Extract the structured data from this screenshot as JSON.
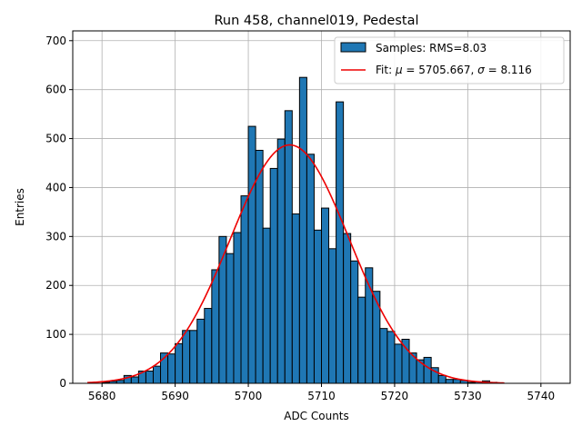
{
  "chart_data": {
    "type": "histogram",
    "title": "Run 458, channel019, Pedestal",
    "xlabel": "ADC Counts",
    "ylabel": "Entries",
    "xlim": [
      5676,
      5744
    ],
    "ylim": [
      0,
      720
    ],
    "xticks": [
      5680,
      5690,
      5700,
      5710,
      5720,
      5730,
      5740
    ],
    "yticks": [
      0,
      100,
      200,
      300,
      400,
      500,
      600,
      700
    ],
    "grid": true,
    "bin_width": 1,
    "bins_start": [
      5680,
      5681,
      5682,
      5683,
      5684,
      5685,
      5686,
      5687,
      5688,
      5689,
      5690,
      5691,
      5692,
      5693,
      5694,
      5695,
      5696,
      5697,
      5698,
      5699,
      5700,
      5701,
      5702,
      5703,
      5704,
      5705,
      5706,
      5707,
      5708,
      5709,
      5710,
      5711,
      5712,
      5713,
      5714,
      5715,
      5716,
      5717,
      5718,
      5719,
      5720,
      5721,
      5722,
      5723,
      5724,
      5725,
      5726,
      5727,
      5728,
      5729,
      5730,
      5731,
      5732,
      5733
    ],
    "counts": [
      2,
      4,
      6,
      16,
      13,
      25,
      25,
      35,
      62,
      60,
      81,
      108,
      108,
      131,
      153,
      232,
      300,
      265,
      308,
      383,
      525,
      476,
      317,
      439,
      499,
      557,
      346,
      625,
      468,
      313,
      358,
      275,
      575,
      306,
      250,
      176,
      236,
      188,
      112,
      106,
      80,
      90,
      62,
      48,
      53,
      32,
      16,
      8,
      8,
      6,
      2,
      3,
      5,
      2
    ],
    "fit": {
      "mu": 5705.667,
      "sigma": 8.116,
      "amplitude": 487,
      "range": [
        5678,
        5735
      ]
    },
    "legend": {
      "placement": "top-right",
      "entries": [
        {
          "label": "Samples: RMS=8.03",
          "color": "#1f77b4",
          "kind": "patch"
        },
        {
          "label_prefix": "Fit: ",
          "mu_symbol": "μ",
          "mu_text": " = 5705.667, ",
          "sigma_symbol": "σ",
          "sigma_text": " = 8.116",
          "color": "#ee0000",
          "kind": "line"
        }
      ]
    }
  }
}
